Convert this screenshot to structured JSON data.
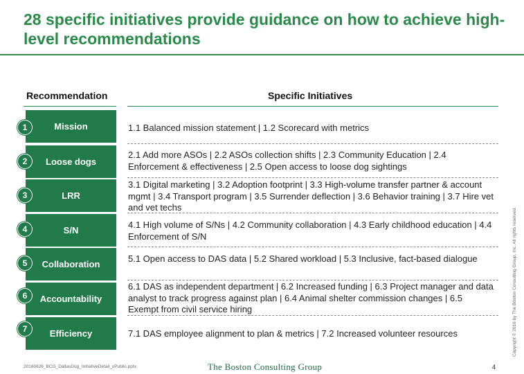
{
  "title": "28 specific initiatives provide guidance on how to achieve high-level recommendations",
  "headers": {
    "recommendation": "Recommendation",
    "initiatives": "Specific Initiatives"
  },
  "rows": [
    {
      "number": "1",
      "name": "Mission",
      "initiatives": "1.1 Balanced mission statement  |  1.2 Scorecard with metrics"
    },
    {
      "number": "2",
      "name": "Loose dogs",
      "initiatives": "2.1 Add more ASOs  |  2.2 ASOs collection shifts |  2.3 Community Education |  2.4 Enforcement & effectiveness  |  2.5 Open access to loose dog sightings"
    },
    {
      "number": "3",
      "name": "LRR",
      "initiatives": "3.1 Digital marketing |  3.2 Adoption footprint |  3.3 High-volume transfer partner & account mgmt |  3.4 Transport program |  3.5 Surrender deflection |  3.6 Behavior training |  3.7 Hire vet and vet techs"
    },
    {
      "number": "4",
      "name": "S/N",
      "initiatives": "4.1 High volume of S/Ns |  4.2 Community collaboration |  4.3 Early childhood education |  4.4 Enforcement of S/N"
    },
    {
      "number": "5",
      "name": "Collaboration",
      "initiatives": "5.1 Open access to DAS data |  5.2 Shared workload |  5.3 Inclusive, fact-based dialogue"
    },
    {
      "number": "6",
      "name": "Accountability",
      "initiatives": "6.1 DAS as independent department |  6.2 Increased funding |  6.3 Project manager and data analyst to track progress against plan |  6.4 Animal shelter commission changes  | 6.5 Exempt from civil service hiring"
    },
    {
      "number": "7",
      "name": "Efficiency",
      "initiatives": "7.1 DAS employee alignment to plan & metrics |  7.2 Increased volunteer resources"
    }
  ],
  "footer": {
    "filename": "20160826_BCG_DallasDog_InitiativeDetail_vPublic.pptx",
    "logo": "The Boston Consulting Group",
    "page": "4",
    "copyright": "Copyright © 2016 by The Boston Consulting Group, Inc. All rights reserved."
  },
  "colors": {
    "accent": "#2a8a4a",
    "box": "#207a49"
  }
}
